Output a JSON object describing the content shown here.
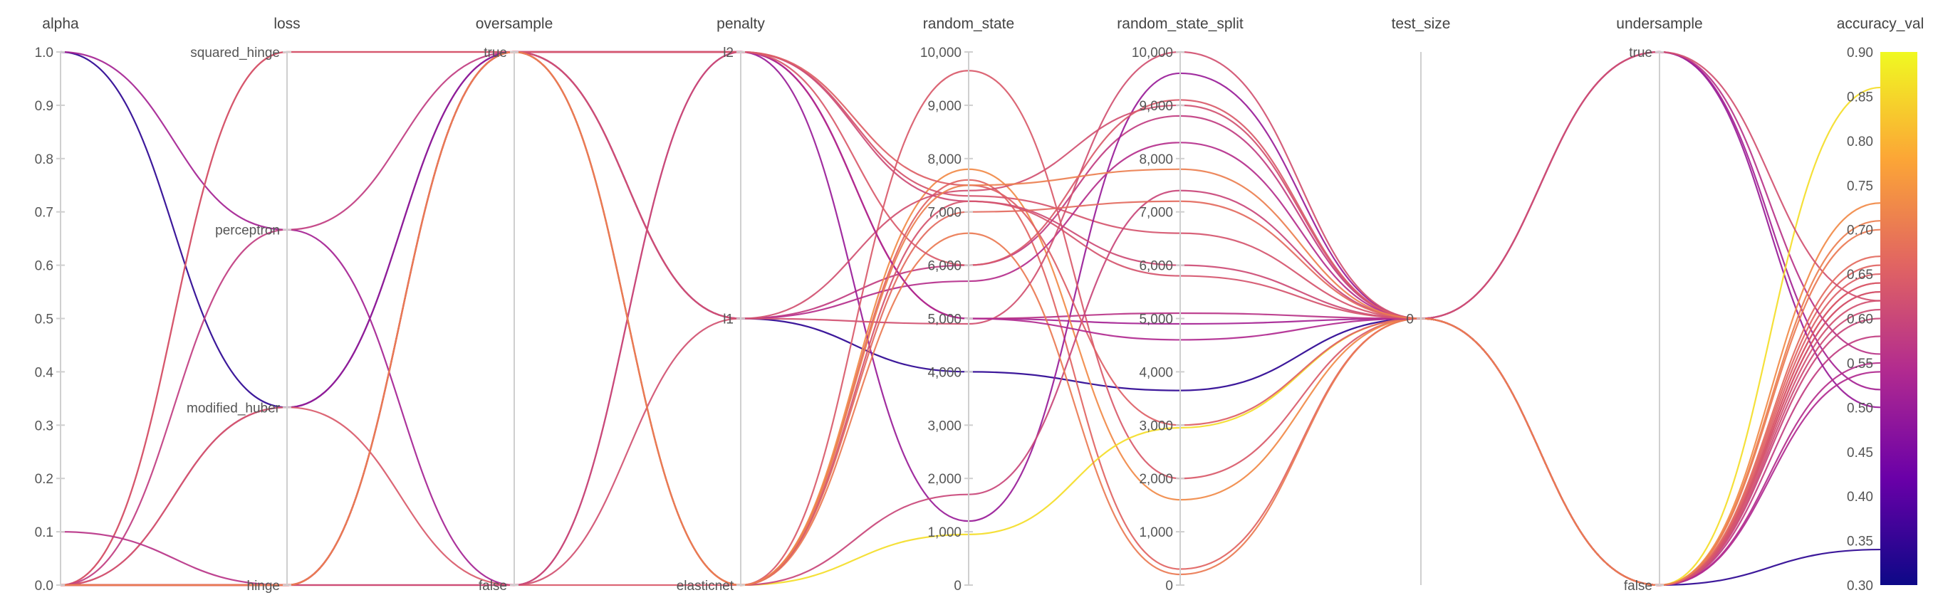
{
  "chart_data": {
    "type": "parallel_coordinates",
    "axes": [
      {
        "key": "alpha",
        "label": "alpha",
        "type": "linear",
        "domain": [
          0,
          1
        ],
        "ticks": [
          "0.0",
          "0.1",
          "0.2",
          "0.3",
          "0.4",
          "0.5",
          "0.6",
          "0.7",
          "0.8",
          "0.9",
          "1.0"
        ]
      },
      {
        "key": "loss",
        "label": "loss",
        "type": "categorical",
        "categories": [
          "hinge",
          "modified_huber",
          "perceptron",
          "squared_hinge"
        ]
      },
      {
        "key": "oversample",
        "label": "oversample",
        "type": "categorical",
        "categories": [
          "false",
          "true"
        ]
      },
      {
        "key": "penalty",
        "label": "penalty",
        "type": "categorical",
        "categories": [
          "elasticnet",
          "l1",
          "l2"
        ]
      },
      {
        "key": "random_state",
        "label": "random_state",
        "type": "linear",
        "domain": [
          0,
          10000
        ],
        "ticks": [
          "0",
          "1,000",
          "2,000",
          "3,000",
          "4,000",
          "5,000",
          "6,000",
          "7,000",
          "8,000",
          "9,000",
          "10,000"
        ]
      },
      {
        "key": "random_state_split",
        "label": "random_state_split",
        "type": "linear",
        "domain": [
          0,
          10000
        ],
        "ticks": [
          "0",
          "1,000",
          "2,000",
          "3,000",
          "4,000",
          "5,000",
          "6,000",
          "7,000",
          "8,000",
          "9,000",
          "10,000"
        ]
      },
      {
        "key": "test_size",
        "label": "test_size",
        "type": "constant",
        "ticks": [
          "0"
        ]
      },
      {
        "key": "undersample",
        "label": "undersample",
        "type": "categorical",
        "categories": [
          "false",
          "true"
        ]
      },
      {
        "key": "accuracy_val",
        "label": "accuracy_val",
        "type": "linear",
        "domain": [
          0.3,
          0.9
        ],
        "ticks": [
          "0.30",
          "0.35",
          "0.40",
          "0.45",
          "0.50",
          "0.55",
          "0.60",
          "0.65",
          "0.70",
          "0.75",
          "0.80",
          "0.85",
          "0.90"
        ]
      }
    ],
    "colorscale": {
      "metric": "accuracy_val",
      "domain": [
        0.3,
        0.9
      ],
      "stops": [
        "#0d0887",
        "#6a00a8",
        "#b12a90",
        "#e16462",
        "#fca636",
        "#f0f921"
      ]
    },
    "runs": [
      {
        "alpha": 1.0,
        "loss": "modified_huber",
        "oversample": "true",
        "penalty": "l1",
        "random_state": 4000,
        "random_state_split": 3650,
        "test_size": 0,
        "undersample": "false",
        "accuracy_val": 0.34
      },
      {
        "alpha": 1.0,
        "loss": "perceptron",
        "oversample": "false",
        "penalty": "l2",
        "random_state": 5000,
        "random_state_split": 4900,
        "test_size": 0,
        "undersample": "true",
        "accuracy_val": 0.52
      },
      {
        "alpha": 0.0,
        "loss": "squared_hinge",
        "oversample": "true",
        "penalty": "elasticnet",
        "random_state": 7600,
        "random_state_split": 300,
        "test_size": 0,
        "undersample": "false",
        "accuracy_val": 0.66
      },
      {
        "alpha": 0.0,
        "loss": "squared_hinge",
        "oversample": "true",
        "penalty": "l2",
        "random_state": 7300,
        "random_state_split": 6600,
        "test_size": 0,
        "undersample": "false",
        "accuracy_val": 0.63
      },
      {
        "alpha": 0.0,
        "loss": "perceptron",
        "oversample": "true",
        "penalty": "l1",
        "random_state": 6000,
        "random_state_split": 8800,
        "test_size": 0,
        "undersample": "false",
        "accuracy_val": 0.58
      },
      {
        "alpha": 0.0,
        "loss": "modified_huber",
        "oversample": "true",
        "penalty": "l2",
        "random_state": 1200,
        "random_state_split": 9600,
        "test_size": 0,
        "undersample": "true",
        "accuracy_val": 0.5
      },
      {
        "alpha": 0.0,
        "loss": "modified_huber",
        "oversample": "false",
        "penalty": "elasticnet",
        "random_state": 9650,
        "random_state_split": 2000,
        "test_size": 0,
        "undersample": "false",
        "accuracy_val": 0.64
      },
      {
        "alpha": 0.1,
        "loss": "hinge",
        "oversample": "true",
        "penalty": "l2",
        "random_state": 5000,
        "random_state_split": 5100,
        "test_size": 0,
        "undersample": "true",
        "accuracy_val": 0.56
      },
      {
        "alpha": 0.0,
        "loss": "hinge",
        "oversample": "true",
        "penalty": "elasticnet",
        "random_state": 7800,
        "random_state_split": 1600,
        "test_size": 0,
        "undersample": "false",
        "accuracy_val": 0.73
      },
      {
        "alpha": 0.0,
        "loss": "hinge",
        "oversample": "true",
        "penalty": "l1",
        "random_state": 5700,
        "random_state_split": 8300,
        "test_size": 0,
        "undersample": "false",
        "accuracy_val": 0.55
      },
      {
        "alpha": 0.0,
        "loss": "hinge",
        "oversample": "true",
        "penalty": "elasticnet",
        "random_state": 950,
        "random_state_split": 2950,
        "test_size": 0,
        "undersample": "false",
        "accuracy_val": 0.86
      },
      {
        "alpha": 0.0,
        "loss": "hinge",
        "oversample": "false",
        "penalty": "l1",
        "random_state": 7400,
        "random_state_split": 9000,
        "test_size": 0,
        "undersample": "true",
        "accuracy_val": 0.62
      },
      {
        "alpha": 0.0,
        "loss": "hinge",
        "oversample": "true",
        "penalty": "elasticnet",
        "random_state": 1700,
        "random_state_split": 7400,
        "test_size": 0,
        "undersample": "false",
        "accuracy_val": 0.6
      },
      {
        "alpha": 0.0,
        "loss": "hinge",
        "oversample": "false",
        "penalty": "l2",
        "random_state": 7200,
        "random_state_split": 6000,
        "test_size": 0,
        "undersample": "false",
        "accuracy_val": 0.61
      },
      {
        "alpha": 0.0,
        "loss": "hinge",
        "oversample": "true",
        "penalty": "elasticnet",
        "random_state": 6600,
        "random_state_split": 200,
        "test_size": 0,
        "undersample": "false",
        "accuracy_val": 0.7
      },
      {
        "alpha": 0.0,
        "loss": "hinge",
        "oversample": "true",
        "penalty": "l2",
        "random_state": 7500,
        "random_state_split": 3000,
        "test_size": 0,
        "undersample": "false",
        "accuracy_val": 0.65
      },
      {
        "alpha": 0.0,
        "loss": "hinge",
        "oversample": "true",
        "penalty": "l1",
        "random_state": 4900,
        "random_state_split": 10000,
        "test_size": 0,
        "undersample": "false",
        "accuracy_val": 0.62
      },
      {
        "alpha": 0.0,
        "loss": "hinge",
        "oversample": "true",
        "penalty": "elasticnet",
        "random_state": 7000,
        "random_state_split": 7200,
        "test_size": 0,
        "undersample": "false",
        "accuracy_val": 0.67
      },
      {
        "alpha": 0.0,
        "loss": "hinge",
        "oversample": "true",
        "penalty": "l2",
        "random_state": 5000,
        "random_state_split": 4600,
        "test_size": 0,
        "undersample": "false",
        "accuracy_val": 0.54
      },
      {
        "alpha": 0.0,
        "loss": "hinge",
        "oversample": "true",
        "penalty": "l2",
        "random_state": 6000,
        "random_state_split": 9100,
        "test_size": 0,
        "undersample": "false",
        "accuracy_val": 0.64
      },
      {
        "alpha": 0.0,
        "loss": "hinge",
        "oversample": "true",
        "penalty": "elasticnet",
        "random_state": 7200,
        "random_state_split": 5800,
        "test_size": 0,
        "undersample": "false",
        "accuracy_val": 0.63
      },
      {
        "alpha": 0.0,
        "loss": "hinge",
        "oversample": "true",
        "penalty": "elasticnet",
        "random_state": 7500,
        "random_state_split": 7800,
        "test_size": 0,
        "undersample": "false",
        "accuracy_val": 0.71
      }
    ]
  }
}
